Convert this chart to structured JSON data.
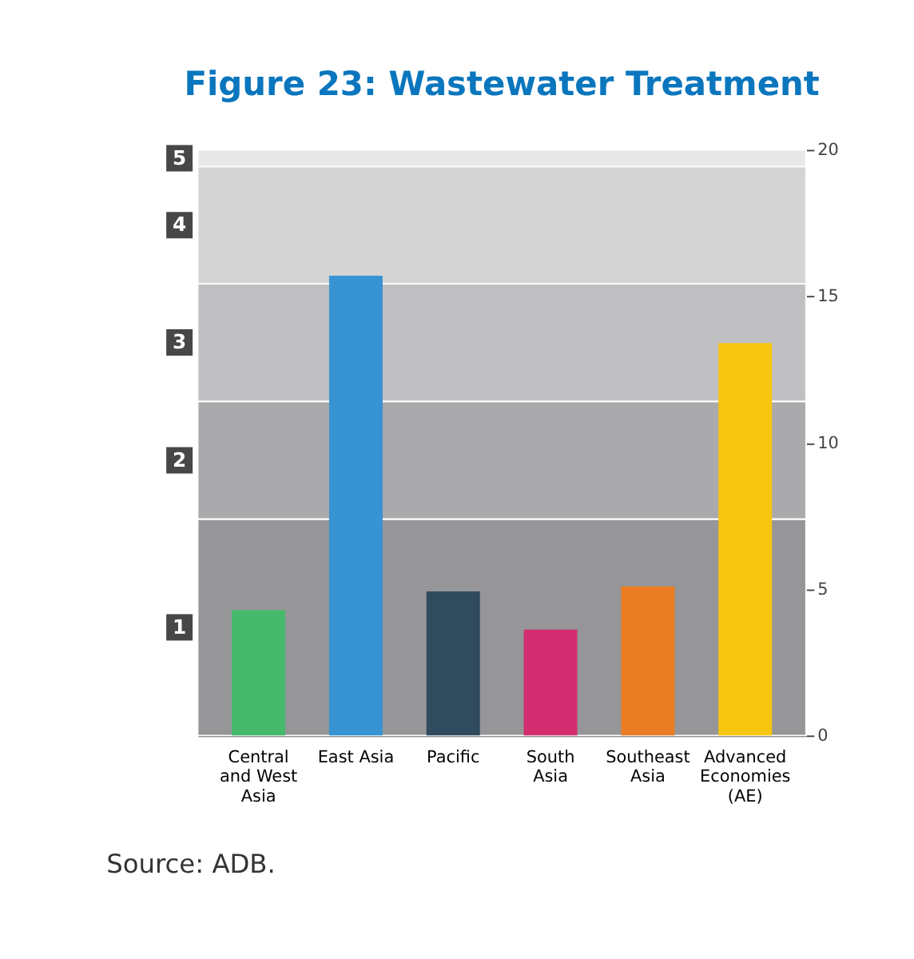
{
  "chart_data": {
    "type": "bar",
    "title": "Figure 23: Wastewater Treatment",
    "categories": [
      "Central and West Asia",
      "East Asia",
      "Pacific",
      "South Asia",
      "Southeast Asia",
      "Advanced Economies (AE)"
    ],
    "values": [
      4.28,
      15.7,
      4.92,
      3.62,
      5.09,
      13.4
    ],
    "colors": [
      "#46b96b",
      "#3893d3",
      "#304b5e",
      "#d22e6f",
      "#ea7d24",
      "#f5c510"
    ],
    "ylim": [
      0,
      20
    ],
    "yticks": [
      0,
      5,
      10,
      15,
      20
    ],
    "grid": false,
    "bands": [
      {
        "axis": "y",
        "from": 0,
        "to": 7.39,
        "label": "1",
        "color": "#969698"
      },
      {
        "axis": "y",
        "from": 7.39,
        "to": 11.41,
        "label": "2",
        "color": "#aaaaac"
      },
      {
        "axis": "y",
        "from": 11.41,
        "to": 15.43,
        "label": "3",
        "color": "#c0c0c2"
      },
      {
        "axis": "y",
        "from": 15.43,
        "to": 19.43,
        "label": "4",
        "color": "#d4d4d4"
      },
      {
        "axis": "y",
        "from": 19.43,
        "to": 20,
        "label": "5",
        "color": "#e8e8e8"
      }
    ],
    "annotations": [
      "Source: ADB."
    ]
  }
}
